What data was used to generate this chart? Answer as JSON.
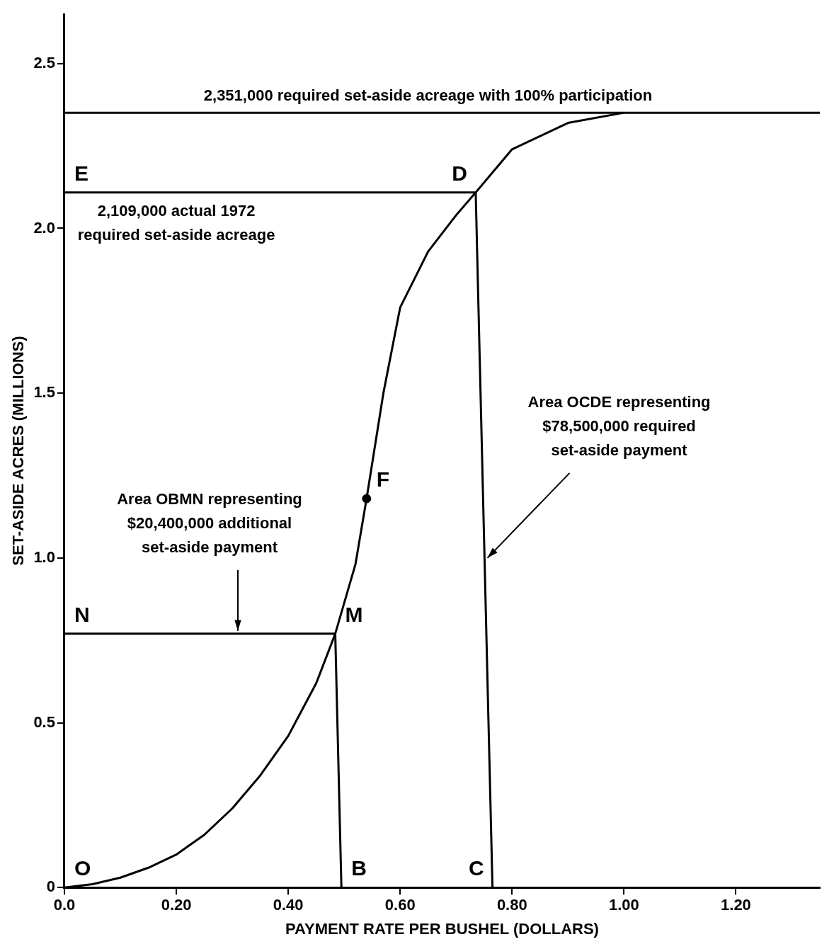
{
  "chart_data": {
    "type": "line",
    "xlabel": "PAYMENT RATE PER BUSHEL (DOLLARS)",
    "ylabel": "SET-ASIDE ACRES (MILLIONS)",
    "xlim": [
      0,
      1.35
    ],
    "ylim": [
      0,
      2.65
    ],
    "xticks": [
      {
        "value": 0,
        "label": "0.0"
      },
      {
        "value": 0.2,
        "label": "0.20"
      },
      {
        "value": 0.4,
        "label": "0.40"
      },
      {
        "value": 0.6,
        "label": "0.60"
      },
      {
        "value": 0.8,
        "label": "0.80"
      },
      {
        "value": 1,
        "label": "1.00"
      },
      {
        "value": 1.2,
        "label": "1.20"
      }
    ],
    "yticks": [
      0,
      {
        "value": 0.5,
        "label": "0.5"
      },
      {
        "value": 1,
        "label": "1.0"
      },
      {
        "value": 1.5,
        "label": "1.5"
      },
      {
        "value": 2,
        "label": "2.0"
      },
      {
        "value": 2.5,
        "label": "2.5"
      }
    ],
    "grid": false,
    "legend": false,
    "marker": "none",
    "line_style": "solid",
    "series": [
      {
        "type": "line",
        "color": "#000000",
        "x": [
          0,
          0.05,
          0.1,
          0.15,
          0.2,
          0.25,
          0.3,
          0.35,
          0.4,
          0.45,
          0.484,
          0.52,
          0.54,
          0.57,
          0.6,
          0.65,
          0.7,
          0.735,
          0.8,
          0.9,
          1.0
        ],
        "values": [
          0,
          0.01,
          0.03,
          0.06,
          0.1,
          0.16,
          0.24,
          0.34,
          0.46,
          0.62,
          0.77,
          0.98,
          1.18,
          1.5,
          1.76,
          1.93,
          2.04,
          2.109,
          2.24,
          2.32,
          2.351
        ]
      },
      {
        "type": "line",
        "color": "#000000",
        "x": [
          0,
          0.484,
          0.495
        ],
        "values": [
          0.77,
          0.77,
          0
        ]
      },
      {
        "type": "line",
        "color": "#000000",
        "x": [
          0,
          0.735,
          0.765
        ],
        "values": [
          2.109,
          2.109,
          0
        ]
      },
      {
        "type": "scatter",
        "marker": "circle",
        "color": "#000000",
        "x": [
          0.54
        ],
        "values": [
          1.18
        ]
      }
    ],
    "ref_lines": [
      {
        "axis": "y",
        "value": 2.351,
        "label": "2,351,000 required set-aside acreage with 100% participation",
        "color": "#000000"
      }
    ],
    "annotations": [
      {
        "text": "2,109,000 actual 1972\nrequired set-aside acreage",
        "x": 0.2,
        "y": 2.109
      },
      {
        "text": "Area OBMN representing\n$20,400,000 additional\nset-aside payment",
        "x": 0.31,
        "y": 0.77
      },
      {
        "text": "Area OCDE representing\n$78,500,000 required\nset-aside payment",
        "x": 0.751,
        "y": 1.0
      },
      {
        "text": "O",
        "x": 0,
        "y": 0
      },
      {
        "text": "B",
        "x": 0.495,
        "y": 0
      },
      {
        "text": "C",
        "x": 0.765,
        "y": 0
      },
      {
        "text": "D",
        "x": 0.735,
        "y": 2.109
      },
      {
        "text": "E",
        "x": 0,
        "y": 2.109
      },
      {
        "text": "F",
        "x": 0.54,
        "y": 1.18
      },
      {
        "text": "M",
        "x": 0.484,
        "y": 0.77
      },
      {
        "text": "N",
        "x": 0,
        "y": 0.77
      }
    ]
  }
}
